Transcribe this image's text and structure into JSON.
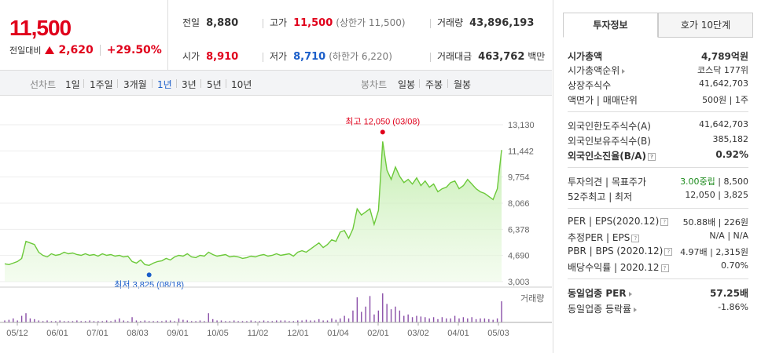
{
  "price": {
    "current": "11,500",
    "change_label": "전일대비",
    "change_abs": "2,620",
    "change_pct": "+29.50%"
  },
  "stats": {
    "prev_close_label": "전일",
    "prev_close": "8,880",
    "open_label": "시가",
    "open": "8,910",
    "high_label": "고가",
    "high": "11,500",
    "upper_limit": "(상한가 11,500)",
    "low_label": "저가",
    "low": "8,710",
    "lower_limit": "(하한가 6,220)",
    "volume_label": "거래량",
    "volume": "43,896,193",
    "amount_label": "거래대금",
    "amount": "463,762",
    "amount_unit": "백만"
  },
  "period_bar": {
    "line_chart_label": "선차트",
    "periods": [
      "1일",
      "1주일",
      "3개월",
      "1년",
      "3년",
      "5년",
      "10년"
    ],
    "active_period": "1년",
    "candle_label": "봉차트",
    "candles": [
      "일봉",
      "주봉",
      "월봉"
    ]
  },
  "chart_data": {
    "type": "line",
    "y_ticks": [
      "13,130",
      "11,442",
      "9,754",
      "8,066",
      "6,378",
      "4,690",
      "3,003"
    ],
    "ylim": [
      3003,
      13130
    ],
    "x_ticks": [
      "05/12",
      "06/01",
      "07/01",
      "08/03",
      "09/01",
      "10/05",
      "11/02",
      "12/01",
      "01/04",
      "02/01",
      "03/02",
      "04/01",
      "05/03"
    ],
    "high_annotation": "최고 12,050 (03/08)",
    "low_annotation": "최저 3,825 (08/18)",
    "volume_label": "거래량",
    "series": [
      {
        "values": [
          4150,
          4100,
          4200,
          4300,
          4500,
          5600,
          5500,
          5400,
          4900,
          4700,
          4600,
          4800,
          4700,
          4750,
          4900,
          4800,
          4850,
          4750,
          4700,
          4800,
          4700,
          4750,
          4650,
          4800,
          4700,
          4750,
          4650,
          4700,
          4600,
          4650,
          4300,
          4200,
          4400,
          4100,
          4050,
          4200,
          4300,
          4350,
          4500,
          4400,
          4600,
          4700,
          4650,
          4800,
          4600,
          4550,
          4700,
          4650,
          4900,
          4750,
          4650,
          4700,
          4750,
          4600,
          4650,
          4600,
          4500,
          4550,
          4650,
          4600,
          4700,
          4750,
          4650,
          4700,
          4800,
          4700,
          4750,
          4800,
          4650,
          4900,
          5000,
          4900,
          5100,
          5300,
          5500,
          5200,
          5400,
          5700,
          5600,
          6200,
          6300,
          5800,
          6400,
          7700,
          7300,
          7500,
          7700,
          6700,
          7600,
          12050,
          10200,
          9600,
          10400,
          9800,
          9400,
          9600,
          9300,
          9700,
          9200,
          9500,
          9100,
          9300,
          8800,
          9000,
          9100,
          9400,
          9500,
          9000,
          9200,
          9600,
          9300,
          9000,
          8800,
          8700,
          8500,
          8300,
          9000,
          11500
        ]
      }
    ],
    "volume": [
      3,
      4,
      6,
      3,
      10,
      14,
      6,
      5,
      3,
      2,
      3,
      2,
      2,
      3,
      2,
      2,
      2,
      3,
      2,
      2,
      3,
      2,
      2,
      2,
      3,
      2,
      4,
      6,
      3,
      2,
      8,
      3,
      2,
      3,
      2,
      2,
      2,
      2,
      3,
      3,
      2,
      6,
      4,
      3,
      2,
      2,
      3,
      2,
      14,
      5,
      3,
      3,
      2,
      2,
      3,
      2,
      2,
      2,
      3,
      2,
      2,
      3,
      2,
      2,
      3,
      3,
      3,
      2,
      2,
      3,
      3,
      4,
      3,
      3,
      5,
      3,
      3,
      6,
      4,
      6,
      10,
      6,
      18,
      38,
      16,
      24,
      40,
      12,
      18,
      44,
      28,
      20,
      24,
      18,
      10,
      12,
      8,
      10,
      9,
      8,
      6,
      8,
      5,
      8,
      6,
      6,
      10,
      6,
      8,
      6,
      8,
      5,
      6,
      6,
      5,
      4,
      6,
      32
    ]
  },
  "right_panel": {
    "tabs": [
      "투자정보",
      "호가 10단계"
    ],
    "active_tab": "투자정보",
    "rows": {
      "market_cap_label": "시가총액",
      "market_cap": "4,789억원",
      "market_cap_rank_label": "시가총액순위",
      "market_cap_rank": "코스닥 177위",
      "listed_shares_label": "상장주식수",
      "listed_shares": "41,642,703",
      "face_value_label": "액면가 | 매매단위",
      "face_value": "500원 | 1주",
      "foreign_limit_label": "외국인한도주식수(A)",
      "foreign_limit": "41,642,703",
      "foreign_hold_label": "외국인보유주식수(B)",
      "foreign_hold": "385,182",
      "foreign_ratio_label": "외국인소진율(B/A)",
      "foreign_ratio": "0.92%",
      "opinion_label": "투자의견 | 목표주가",
      "opinion": "3.00중립",
      "target_price": "8,500",
      "w52_label": "52주최고 | 최저",
      "w52": "12,050 | 3,825",
      "per_label": "PER | EPS(2020.12)",
      "per": "50.88배 | 226원",
      "est_per_label": "추정PER | EPS",
      "est_per": "N/A | N/A",
      "pbr_label": "PBR | BPS (2020.12)",
      "pbr": "4.97배 | 2,315원",
      "dividend_label": "배당수익률 | 2020.12",
      "dividend": "0.70%",
      "sector_per_label": "동일업종 PER",
      "sector_per": "57.25배",
      "sector_rate_label": "동일업종 등락률",
      "sector_rate": "-1.86%"
    }
  }
}
